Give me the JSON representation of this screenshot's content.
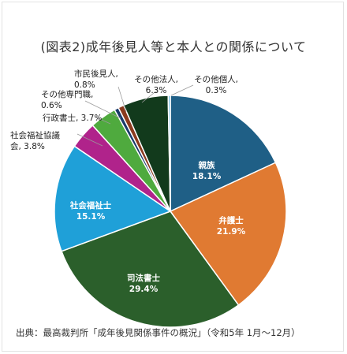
{
  "title": "(図表2)成年後見人等と本人との関係について",
  "source": "出典：最高裁判所「成年後見関係事件の概況」（令和5年 1月～12月）",
  "chart_data": {
    "type": "pie",
    "title": "(図表2)成年後見人等と本人との関係について",
    "slices": [
      {
        "label": "親族",
        "value": 18.1,
        "value_label": "18.1%",
        "color": "#1f5f86"
      },
      {
        "label": "弁護士",
        "value": 21.9,
        "value_label": "21.9%",
        "color": "#e07a32"
      },
      {
        "label": "司法書士",
        "value": 29.4,
        "value_label": "29.4%",
        "color": "#2b5f2b"
      },
      {
        "label": "社会福祉士",
        "value": 15.1,
        "value_label": "15.1%",
        "color": "#1fa0d8"
      },
      {
        "label": "社会福祉協議会",
        "value": 3.8,
        "value_label": "3.8%",
        "color": "#b0238b"
      },
      {
        "label": "行政書士",
        "value": 3.7,
        "value_label": "3.7%",
        "color": "#4faa3e"
      },
      {
        "label": "その他専門職",
        "value": 0.6,
        "value_label": "0.6%",
        "color": "#1a3a6a"
      },
      {
        "label": "市民後見人",
        "value": 0.8,
        "value_label": "0.8%",
        "color": "#8b3a1e"
      },
      {
        "label": "その他法人",
        "value": 6.3,
        "value_label": "6.3%",
        "color": "#123a1c"
      },
      {
        "label": "その他個人",
        "value": 0.3,
        "value_label": "0.3%",
        "color": "#6ab7e2"
      }
    ],
    "label_texts": [
      {
        "name": "label-kin",
        "lines": [
          "親族",
          "18.1%"
        ]
      },
      {
        "name": "label-lawyer",
        "lines": [
          "弁護士",
          "21.9%"
        ]
      },
      {
        "name": "label-judicial-scrivener",
        "lines": [
          "司法書士",
          "29.4%"
        ]
      },
      {
        "name": "label-social-worker",
        "lines": [
          "社会福祉士",
          "15.1%"
        ]
      },
      {
        "name": "label-social-welfare-council",
        "lines": [
          "社会福祉協議",
          "会, 3.8%"
        ]
      },
      {
        "name": "label-administrative-scrivener",
        "lines": [
          "行政書士, 3.7%"
        ]
      },
      {
        "name": "label-other-professional",
        "lines": [
          "その他専門職,",
          "0.6%"
        ]
      },
      {
        "name": "label-citizen-guardian",
        "lines": [
          "市民後見人,",
          "0.8%"
        ]
      },
      {
        "name": "label-other-corporation",
        "lines": [
          "その他法人,",
          "6.3%"
        ]
      },
      {
        "name": "label-other-individual",
        "lines": [
          "その他個人,",
          "0.3%"
        ]
      }
    ],
    "legend": "none"
  }
}
